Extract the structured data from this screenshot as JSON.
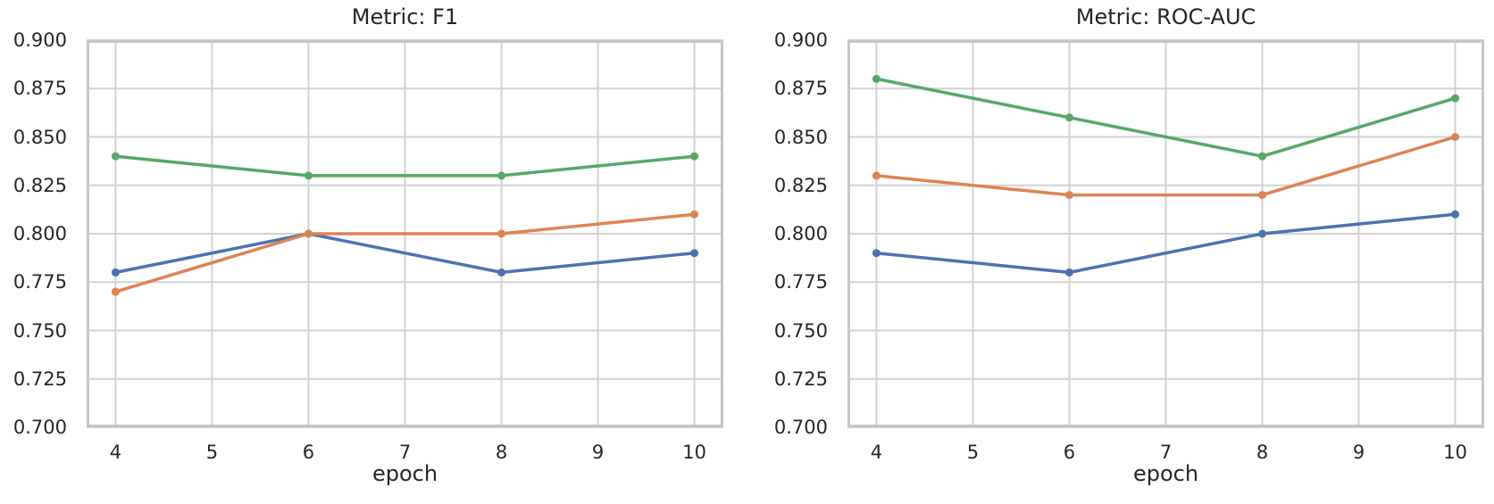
{
  "figure": {
    "background": "#ffffff",
    "grid_color": "#d2d2d2",
    "spine_color": "#c6c6c6",
    "text_color": "#262626"
  },
  "chart_data": [
    {
      "type": "line",
      "title": "Metric: F1",
      "xlabel": "epoch",
      "ylabel": "",
      "x": [
        4,
        6,
        8,
        10
      ],
      "xticks": [
        4,
        5,
        6,
        7,
        8,
        9,
        10
      ],
      "xtick_labels": [
        "4",
        "5",
        "6",
        "7",
        "8",
        "9",
        "10"
      ],
      "yticks": [
        0.7,
        0.725,
        0.75,
        0.775,
        0.8,
        0.825,
        0.85,
        0.875,
        0.9
      ],
      "ytick_labels": [
        "0.700",
        "0.725",
        "0.750",
        "0.775",
        "0.800",
        "0.825",
        "0.850",
        "0.875",
        "0.900"
      ],
      "xlim": [
        3.7,
        10.3
      ],
      "ylim": [
        0.7,
        0.9
      ],
      "grid": true,
      "legend": "none",
      "series": [
        {
          "name": "series-blue",
          "color": "#4C72B0",
          "values": [
            0.78,
            0.8,
            0.78,
            0.79
          ]
        },
        {
          "name": "series-orange",
          "color": "#DD8452",
          "values": [
            0.77,
            0.8,
            0.8,
            0.81
          ]
        },
        {
          "name": "series-green",
          "color": "#55A868",
          "values": [
            0.84,
            0.83,
            0.83,
            0.84
          ]
        }
      ]
    },
    {
      "type": "line",
      "title": "Metric: ROC-AUC",
      "xlabel": "epoch",
      "ylabel": "",
      "x": [
        4,
        6,
        8,
        10
      ],
      "xticks": [
        4,
        5,
        6,
        7,
        8,
        9,
        10
      ],
      "xtick_labels": [
        "4",
        "5",
        "6",
        "7",
        "8",
        "9",
        "10"
      ],
      "yticks": [
        0.7,
        0.725,
        0.75,
        0.775,
        0.8,
        0.825,
        0.85,
        0.875,
        0.9
      ],
      "ytick_labels": [
        "0.700",
        "0.725",
        "0.750",
        "0.775",
        "0.800",
        "0.825",
        "0.850",
        "0.875",
        "0.900"
      ],
      "xlim": [
        3.7,
        10.3
      ],
      "ylim": [
        0.7,
        0.9
      ],
      "grid": true,
      "legend": "none",
      "series": [
        {
          "name": "series-blue",
          "color": "#4C72B0",
          "values": [
            0.79,
            0.78,
            0.8,
            0.81
          ]
        },
        {
          "name": "series-orange",
          "color": "#DD8452",
          "values": [
            0.83,
            0.82,
            0.82,
            0.85
          ]
        },
        {
          "name": "series-green",
          "color": "#55A868",
          "values": [
            0.88,
            0.86,
            0.84,
            0.87
          ]
        }
      ]
    }
  ]
}
